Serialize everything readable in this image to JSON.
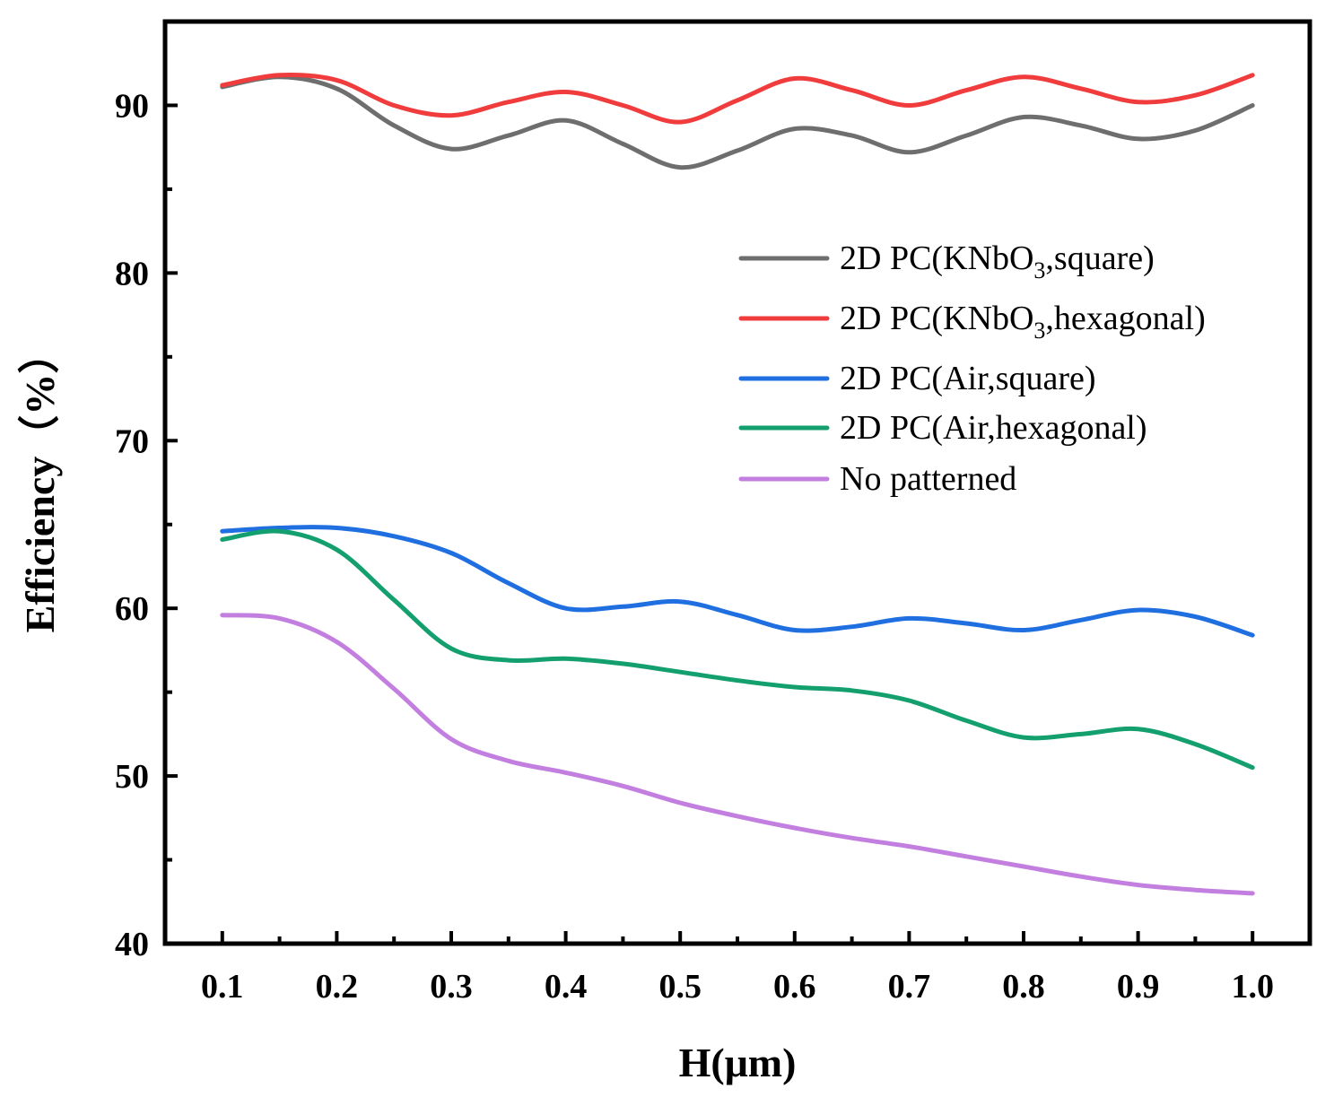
{
  "chart_data": {
    "type": "line",
    "title": "",
    "xlabel": "H(μm)",
    "ylabel": "Efficiency（%）",
    "xlim": [
      0.05,
      1.05
    ],
    "ylim": [
      40,
      95
    ],
    "x_ticks": [
      "0.1",
      "0.2",
      "0.3",
      "0.4",
      "0.5",
      "0.6",
      "0.7",
      "0.8",
      "0.9",
      "1.0"
    ],
    "y_ticks": [
      "40",
      "50",
      "60",
      "70",
      "80",
      "90"
    ],
    "grid": false,
    "legend_position": "center-right",
    "series": [
      {
        "name": "2D PC(KNbO3,square)",
        "legend": {
          "pre": "2D PC(KNbO",
          "sub": "3",
          "post": ",square)"
        },
        "color": "#6e6e6e",
        "x": [
          0.1,
          0.15,
          0.2,
          0.25,
          0.3,
          0.35,
          0.4,
          0.45,
          0.5,
          0.55,
          0.6,
          0.65,
          0.7,
          0.75,
          0.8,
          0.85,
          0.9,
          0.95,
          1.0
        ],
        "values": [
          91.1,
          91.7,
          91.0,
          88.8,
          87.4,
          88.2,
          89.1,
          87.7,
          86.3,
          87.3,
          88.6,
          88.2,
          87.2,
          88.2,
          89.3,
          88.8,
          88.0,
          88.5,
          90.0
        ]
      },
      {
        "name": "2D PC(KNbO3,hexagonal)",
        "legend": {
          "pre": "2D PC(KNbO",
          "sub": "3",
          "post": ",hexagonal)"
        },
        "color": "#f03c3c",
        "x": [
          0.1,
          0.15,
          0.2,
          0.25,
          0.3,
          0.35,
          0.4,
          0.45,
          0.5,
          0.55,
          0.6,
          0.65,
          0.7,
          0.75,
          0.8,
          0.85,
          0.9,
          0.95,
          1.0
        ],
        "values": [
          91.2,
          91.8,
          91.5,
          90.0,
          89.4,
          90.2,
          90.8,
          90.0,
          89.0,
          90.3,
          91.6,
          90.9,
          90.0,
          90.9,
          91.7,
          91.0,
          90.2,
          90.6,
          91.8
        ]
      },
      {
        "name": "2D PC(Air,square)",
        "legend": {
          "pre": "2D PC(Air,square)",
          "sub": "",
          "post": ""
        },
        "color": "#1f6fe0",
        "x": [
          0.1,
          0.15,
          0.2,
          0.25,
          0.3,
          0.35,
          0.4,
          0.45,
          0.5,
          0.55,
          0.6,
          0.65,
          0.7,
          0.75,
          0.8,
          0.85,
          0.9,
          0.95,
          1.0
        ],
        "values": [
          64.6,
          64.8,
          64.8,
          64.3,
          63.3,
          61.5,
          60.0,
          60.1,
          60.4,
          59.6,
          58.7,
          58.9,
          59.4,
          59.1,
          58.7,
          59.3,
          59.9,
          59.5,
          58.4
        ]
      },
      {
        "name": "2D PC(Air,hexagonal)",
        "legend": {
          "pre": "2D PC(Air,hexagonal)",
          "sub": "",
          "post": ""
        },
        "color": "#14a06e",
        "x": [
          0.1,
          0.15,
          0.2,
          0.25,
          0.3,
          0.35,
          0.4,
          0.45,
          0.5,
          0.55,
          0.6,
          0.65,
          0.7,
          0.75,
          0.8,
          0.85,
          0.9,
          0.95,
          1.0
        ],
        "values": [
          64.1,
          64.6,
          63.5,
          60.5,
          57.6,
          56.9,
          57.0,
          56.7,
          56.2,
          55.7,
          55.3,
          55.1,
          54.5,
          53.3,
          52.3,
          52.5,
          52.8,
          51.9,
          50.5
        ]
      },
      {
        "name": "No patterned",
        "legend": {
          "pre": "No patterned",
          "sub": "",
          "post": ""
        },
        "color": "#c37fe0",
        "x": [
          0.1,
          0.15,
          0.2,
          0.25,
          0.3,
          0.35,
          0.4,
          0.45,
          0.5,
          0.55,
          0.6,
          0.65,
          0.7,
          0.75,
          0.8,
          0.85,
          0.9,
          0.95,
          1.0
        ],
        "values": [
          59.6,
          59.4,
          58.0,
          55.2,
          52.2,
          50.9,
          50.2,
          49.4,
          48.4,
          47.6,
          46.9,
          46.3,
          45.8,
          45.2,
          44.6,
          44.0,
          43.5,
          43.2,
          43.0
        ]
      }
    ]
  }
}
